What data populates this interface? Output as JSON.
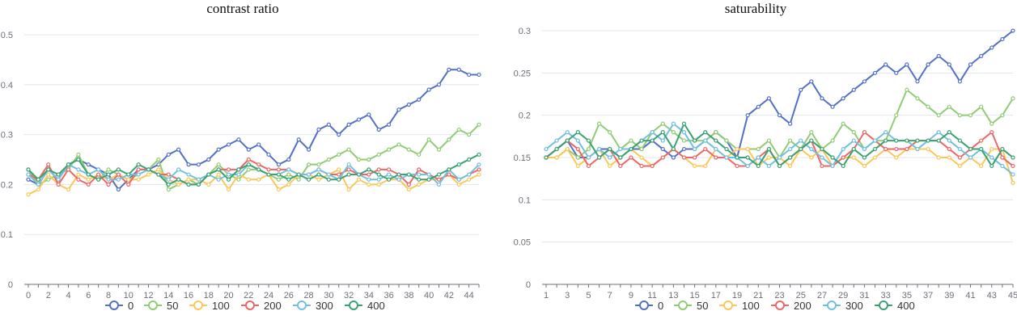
{
  "chart_data": [
    {
      "type": "line",
      "title": "contrast ratio",
      "x": [
        0,
        1,
        2,
        3,
        4,
        5,
        6,
        7,
        8,
        9,
        10,
        11,
        12,
        13,
        14,
        15,
        16,
        17,
        18,
        19,
        20,
        21,
        22,
        23,
        24,
        25,
        26,
        27,
        28,
        29,
        30,
        31,
        32,
        33,
        34,
        35,
        36,
        37,
        38,
        39,
        40,
        41,
        42,
        43,
        44,
        45
      ],
      "x_tick_labels": [
        "0",
        "2",
        "4",
        "6",
        "8",
        "10",
        "12",
        "14",
        "16",
        "18",
        "20",
        "22",
        "24",
        "26",
        "28",
        "30",
        "32",
        "34",
        "36",
        "38",
        "40",
        "42",
        "44"
      ],
      "y_tick_labels": [
        "0",
        "0.1",
        "0.2",
        "0.3",
        "0.4",
        "0.5"
      ],
      "ylim": [
        0,
        0.5
      ],
      "grid": true,
      "legend": "bottom-center",
      "series": [
        {
          "name": "0",
          "color": "#5470c6",
          "values": [
            0.21,
            0.2,
            0.23,
            0.21,
            0.24,
            0.25,
            0.24,
            0.23,
            0.22,
            0.19,
            0.21,
            0.23,
            0.23,
            0.24,
            0.26,
            0.27,
            0.24,
            0.24,
            0.25,
            0.27,
            0.28,
            0.29,
            0.27,
            0.28,
            0.26,
            0.24,
            0.25,
            0.29,
            0.27,
            0.31,
            0.32,
            0.3,
            0.32,
            0.33,
            0.34,
            0.31,
            0.32,
            0.35,
            0.36,
            0.37,
            0.39,
            0.4,
            0.43,
            0.43,
            0.42,
            0.42
          ]
        },
        {
          "name": "50",
          "color": "#91cc75",
          "values": [
            0.23,
            0.2,
            0.21,
            0.22,
            0.23,
            0.26,
            0.22,
            0.21,
            0.23,
            0.22,
            0.21,
            0.22,
            0.23,
            0.25,
            0.19,
            0.2,
            0.21,
            0.2,
            0.22,
            0.24,
            0.22,
            0.21,
            0.23,
            0.23,
            0.22,
            0.21,
            0.22,
            0.21,
            0.24,
            0.24,
            0.25,
            0.26,
            0.27,
            0.25,
            0.25,
            0.26,
            0.27,
            0.28,
            0.27,
            0.26,
            0.29,
            0.27,
            0.29,
            0.31,
            0.3,
            0.32
          ]
        },
        {
          "name": "100",
          "color": "#fac858",
          "values": [
            0.18,
            0.19,
            0.22,
            0.2,
            0.19,
            0.22,
            0.21,
            0.22,
            0.21,
            0.22,
            0.21,
            0.21,
            0.22,
            0.23,
            0.21,
            0.2,
            0.21,
            0.21,
            0.2,
            0.22,
            0.19,
            0.22,
            0.21,
            0.21,
            0.22,
            0.19,
            0.2,
            0.22,
            0.22,
            0.21,
            0.22,
            0.23,
            0.19,
            0.21,
            0.2,
            0.2,
            0.21,
            0.21,
            0.19,
            0.2,
            0.21,
            0.21,
            0.22,
            0.2,
            0.21,
            0.22
          ]
        },
        {
          "name": "200",
          "color": "#ee6666",
          "values": [
            0.22,
            0.21,
            0.24,
            0.2,
            0.23,
            0.21,
            0.2,
            0.22,
            0.2,
            0.22,
            0.2,
            0.23,
            0.23,
            0.22,
            0.22,
            0.21,
            0.2,
            0.2,
            0.22,
            0.23,
            0.23,
            0.23,
            0.25,
            0.24,
            0.23,
            0.23,
            0.23,
            0.22,
            0.22,
            0.23,
            0.22,
            0.22,
            0.23,
            0.22,
            0.22,
            0.23,
            0.23,
            0.22,
            0.2,
            0.23,
            0.22,
            0.21,
            0.22,
            0.21,
            0.22,
            0.23
          ]
        },
        {
          "name": "300",
          "color": "#73c0de",
          "values": [
            0.22,
            0.2,
            0.23,
            0.21,
            0.24,
            0.23,
            0.22,
            0.23,
            0.21,
            0.21,
            0.22,
            0.22,
            0.23,
            0.22,
            0.21,
            0.23,
            0.22,
            0.21,
            0.22,
            0.21,
            0.22,
            0.22,
            0.24,
            0.23,
            0.22,
            0.22,
            0.23,
            0.22,
            0.22,
            0.23,
            0.22,
            0.21,
            0.24,
            0.22,
            0.21,
            0.21,
            0.22,
            0.21,
            0.22,
            0.22,
            0.22,
            0.2,
            0.23,
            0.21,
            0.22,
            0.24
          ]
        },
        {
          "name": "400",
          "color": "#3ba272",
          "values": [
            0.23,
            0.21,
            0.23,
            0.22,
            0.24,
            0.25,
            0.22,
            0.21,
            0.22,
            0.23,
            0.22,
            0.24,
            0.23,
            0.22,
            0.2,
            0.21,
            0.2,
            0.2,
            0.22,
            0.23,
            0.21,
            0.23,
            0.24,
            0.23,
            0.22,
            0.22,
            0.21,
            0.22,
            0.21,
            0.22,
            0.21,
            0.21,
            0.22,
            0.22,
            0.23,
            0.22,
            0.21,
            0.22,
            0.22,
            0.21,
            0.21,
            0.22,
            0.23,
            0.24,
            0.25,
            0.26
          ]
        }
      ]
    },
    {
      "type": "line",
      "title": "saturability",
      "x": [
        1,
        2,
        3,
        4,
        5,
        6,
        7,
        8,
        9,
        10,
        11,
        12,
        13,
        14,
        15,
        16,
        17,
        18,
        19,
        20,
        21,
        22,
        23,
        24,
        25,
        26,
        27,
        28,
        29,
        30,
        31,
        32,
        33,
        34,
        35,
        36,
        37,
        38,
        39,
        40,
        41,
        42,
        43,
        44,
        45
      ],
      "x_tick_labels": [
        "1",
        "3",
        "5",
        "7",
        "9",
        "11",
        "13",
        "15",
        "17",
        "19",
        "21",
        "23",
        "25",
        "27",
        "29",
        "31",
        "33",
        "35",
        "37",
        "39",
        "41",
        "43",
        "45"
      ],
      "y_tick_labels": [
        "0",
        "0.05",
        "0.1",
        "0.15",
        "0.2",
        "0.25",
        "0.3"
      ],
      "ylim": [
        0,
        0.3
      ],
      "grid": true,
      "legend": "bottom-center",
      "series": [
        {
          "name": "0",
          "color": "#5470c6",
          "values": [
            0.15,
            0.16,
            0.17,
            0.15,
            0.15,
            0.16,
            0.16,
            0.15,
            0.16,
            0.16,
            0.17,
            0.16,
            0.15,
            0.16,
            0.16,
            0.17,
            0.18,
            0.17,
            0.15,
            0.2,
            0.21,
            0.22,
            0.2,
            0.19,
            0.23,
            0.24,
            0.22,
            0.21,
            0.22,
            0.23,
            0.24,
            0.25,
            0.26,
            0.25,
            0.26,
            0.24,
            0.26,
            0.27,
            0.26,
            0.24,
            0.26,
            0.27,
            0.28,
            0.29,
            0.3
          ]
        },
        {
          "name": "50",
          "color": "#91cc75",
          "values": [
            0.15,
            0.15,
            0.16,
            0.15,
            0.16,
            0.19,
            0.18,
            0.16,
            0.17,
            0.16,
            0.18,
            0.19,
            0.18,
            0.17,
            0.17,
            0.17,
            0.18,
            0.17,
            0.16,
            0.16,
            0.16,
            0.17,
            0.15,
            0.17,
            0.16,
            0.18,
            0.16,
            0.17,
            0.19,
            0.18,
            0.16,
            0.17,
            0.17,
            0.2,
            0.23,
            0.22,
            0.21,
            0.2,
            0.21,
            0.2,
            0.2,
            0.21,
            0.19,
            0.2,
            0.22
          ]
        },
        {
          "name": "100",
          "color": "#fac858",
          "values": [
            0.15,
            0.15,
            0.16,
            0.14,
            0.15,
            0.16,
            0.14,
            0.15,
            0.16,
            0.15,
            0.14,
            0.15,
            0.16,
            0.15,
            0.14,
            0.14,
            0.16,
            0.15,
            0.16,
            0.16,
            0.14,
            0.15,
            0.15,
            0.14,
            0.16,
            0.15,
            0.16,
            0.14,
            0.15,
            0.15,
            0.14,
            0.15,
            0.16,
            0.15,
            0.16,
            0.16,
            0.16,
            0.15,
            0.15,
            0.14,
            0.15,
            0.14,
            0.16,
            0.16,
            0.12
          ]
        },
        {
          "name": "200",
          "color": "#ee6666",
          "values": [
            0.15,
            0.16,
            0.17,
            0.16,
            0.14,
            0.15,
            0.16,
            0.14,
            0.15,
            0.14,
            0.14,
            0.15,
            0.16,
            0.15,
            0.15,
            0.16,
            0.15,
            0.15,
            0.14,
            0.14,
            0.15,
            0.16,
            0.14,
            0.15,
            0.16,
            0.17,
            0.14,
            0.14,
            0.15,
            0.16,
            0.18,
            0.17,
            0.16,
            0.16,
            0.16,
            0.17,
            0.17,
            0.17,
            0.16,
            0.15,
            0.16,
            0.17,
            0.18,
            0.15,
            0.14
          ]
        },
        {
          "name": "300",
          "color": "#73c0de",
          "values": [
            0.16,
            0.17,
            0.18,
            0.17,
            0.15,
            0.16,
            0.15,
            0.16,
            0.16,
            0.17,
            0.18,
            0.17,
            0.19,
            0.18,
            0.16,
            0.17,
            0.16,
            0.15,
            0.15,
            0.14,
            0.15,
            0.14,
            0.15,
            0.16,
            0.17,
            0.16,
            0.15,
            0.14,
            0.16,
            0.17,
            0.16,
            0.17,
            0.18,
            0.17,
            0.17,
            0.16,
            0.17,
            0.18,
            0.17,
            0.16,
            0.15,
            0.16,
            0.15,
            0.14,
            0.13
          ]
        },
        {
          "name": "400",
          "color": "#3ba272",
          "values": [
            0.15,
            0.16,
            0.17,
            0.18,
            0.17,
            0.15,
            0.16,
            0.15,
            0.16,
            0.17,
            0.17,
            0.18,
            0.16,
            0.19,
            0.17,
            0.18,
            0.17,
            0.16,
            0.15,
            0.15,
            0.14,
            0.16,
            0.14,
            0.15,
            0.16,
            0.17,
            0.16,
            0.15,
            0.14,
            0.16,
            0.15,
            0.16,
            0.17,
            0.17,
            0.17,
            0.17,
            0.17,
            0.17,
            0.18,
            0.17,
            0.16,
            0.16,
            0.14,
            0.16,
            0.15
          ]
        }
      ]
    }
  ]
}
